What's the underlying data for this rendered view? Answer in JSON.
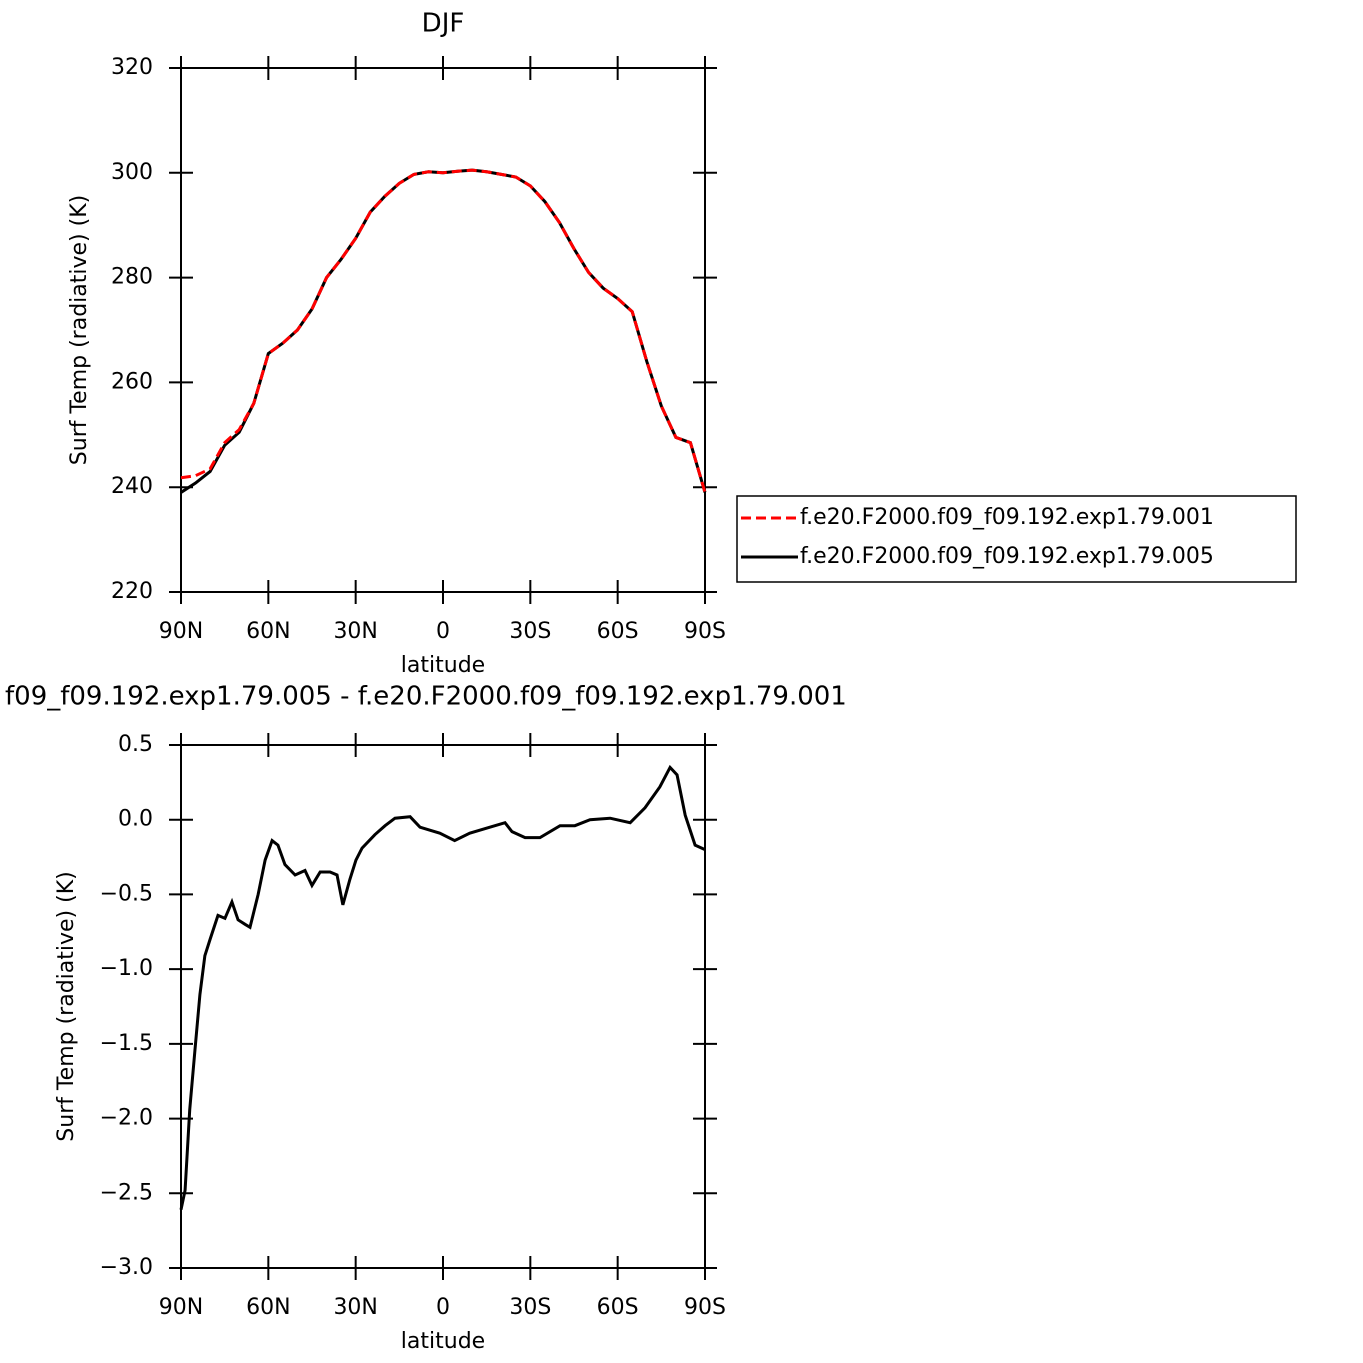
{
  "chart_data": [
    {
      "type": "line",
      "title": "DJF",
      "xlabel": "latitude",
      "ylabel": "Surf Temp (radiative) (K)",
      "x": [
        90,
        85,
        80,
        75,
        70,
        65,
        60,
        55,
        50,
        45,
        40,
        35,
        30,
        25,
        20,
        15,
        10,
        5,
        0,
        -5,
        -10,
        -15,
        -20,
        -25,
        -30,
        -35,
        -40,
        -45,
        -50,
        -55,
        -60,
        -65,
        -70,
        -75,
        -80,
        -85,
        -90
      ],
      "series": [
        {
          "name": "f.e20.F2000.f09_f09.192.exp1.79.001",
          "color": "#ff0000",
          "dashed": true,
          "values": [
            241.8,
            242.2,
            243.5,
            248.5,
            251,
            256,
            265.5,
            267.5,
            270,
            274,
            280,
            283.5,
            287.5,
            292.5,
            295.5,
            298,
            299.7,
            300.2,
            300,
            300.3,
            300.5,
            300.2,
            299.7,
            299.2,
            297.5,
            294.5,
            290.5,
            285.5,
            281,
            278,
            276,
            273.5,
            264,
            255.5,
            249.5,
            248.5,
            239
          ]
        },
        {
          "name": "f.e20.F2000.f09_f09.192.exp1.79.005",
          "color": "#000000",
          "dashed": false,
          "values": [
            239,
            240.8,
            243,
            248,
            250.5,
            256,
            265.5,
            267.5,
            270,
            274,
            280,
            283.5,
            287.5,
            292.5,
            295.5,
            298,
            299.7,
            300.2,
            300,
            300.3,
            300.5,
            300.2,
            299.7,
            299.2,
            297.5,
            294.5,
            290.5,
            285.5,
            281,
            278,
            276,
            273.5,
            264,
            255.5,
            249.5,
            248.5,
            239
          ]
        }
      ],
      "xlim": [
        90,
        -90
      ],
      "xticks": [
        {
          "value": 90,
          "label": "90N"
        },
        {
          "value": 60,
          "label": "60N"
        },
        {
          "value": 30,
          "label": "30N"
        },
        0,
        {
          "value": -30,
          "label": "30S"
        },
        {
          "value": -60,
          "label": "60S"
        },
        {
          "value": -90,
          "label": "90S"
        }
      ],
      "ylim": [
        220,
        320
      ],
      "yticks": [
        220,
        240,
        260,
        280,
        300,
        320
      ],
      "legend": "right"
    },
    {
      "type": "line",
      "title": "f09_f09.192.exp1.79.005 - f.e20.F2000.f09_f09.192.exp1.79.001",
      "xlabel": "latitude",
      "ylabel": "Surf Temp (radiative) (K)",
      "x": [
        90,
        88.6,
        87,
        85.2,
        83.5,
        81.8,
        80,
        77.3,
        74.9,
        72.5,
        70.4,
        68,
        66.3,
        63.5,
        61.1,
        58.7,
        56.7,
        54.3,
        50.8,
        47.4,
        45,
        42.2,
        38.8,
        36.4,
        34.4,
        32,
        29.9,
        27.8,
        23.4,
        19.9,
        16.5,
        11.3,
        7.9,
        4.5,
        1.1,
        -4,
        -9.2,
        -16.1,
        -21.3,
        -23.7,
        -28.2,
        -33.3,
        -40.2,
        -45.3,
        -50.5,
        -57.4,
        -64.3,
        -69.4,
        -74.5,
        -78,
        -80.4,
        -83.2,
        -86.6,
        -90
      ],
      "series": [
        {
          "color": "#000000",
          "dashed": false,
          "values": [
            -2.61,
            -2.48,
            -1.94,
            -1.54,
            -1.17,
            -0.91,
            -0.8,
            -0.64,
            -0.66,
            -0.55,
            -0.67,
            -0.7,
            -0.72,
            -0.5,
            -0.27,
            -0.14,
            -0.17,
            -0.3,
            -0.37,
            -0.34,
            -0.44,
            -0.35,
            -0.35,
            -0.37,
            -0.57,
            -0.4,
            -0.27,
            -0.19,
            -0.1,
            -0.04,
            0.01,
            0.02,
            -0.05,
            -0.07,
            -0.09,
            -0.14,
            -0.09,
            -0.05,
            -0.02,
            -0.08,
            -0.12,
            -0.12,
            -0.04,
            -0.04,
            0,
            0.01,
            -0.02,
            0.08,
            0.22,
            0.35,
            0.3,
            0.03,
            -0.17,
            -0.2
          ]
        }
      ],
      "xlim": [
        90,
        -90
      ],
      "xticks": [
        {
          "value": 90,
          "label": "90N"
        },
        {
          "value": 60,
          "label": "60N"
        },
        {
          "value": 30,
          "label": "30N"
        },
        0,
        {
          "value": -30,
          "label": "30S"
        },
        {
          "value": -60,
          "label": "60S"
        },
        {
          "value": -90,
          "label": "90S"
        }
      ],
      "ylim": [
        -3,
        0.5
      ],
      "yticks": [
        {
          "value": -3,
          "label": "−3.0"
        },
        {
          "value": -2.5,
          "label": "−2.5"
        },
        {
          "value": -2,
          "label": "−2.0"
        },
        {
          "value": -1.5,
          "label": "−1.5"
        },
        {
          "value": -1,
          "label": "−1.0"
        },
        {
          "value": -0.5,
          "label": "−0.5"
        },
        {
          "value": 0,
          "label": "0.0"
        },
        0.5
      ]
    }
  ]
}
